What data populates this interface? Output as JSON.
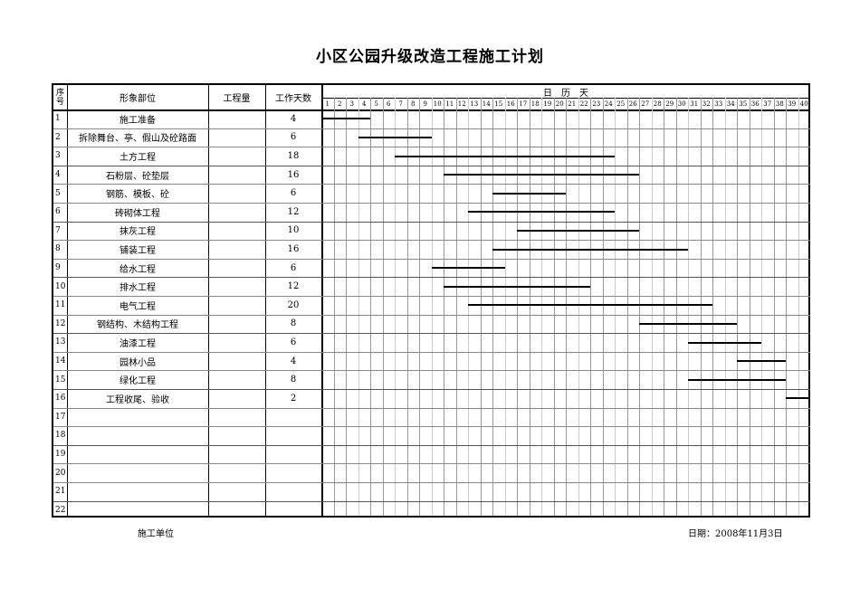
{
  "title": "小区公园升级改造工程施工计划",
  "headers": {
    "seq": "序号",
    "part": "形象部位",
    "quantity": "工程量",
    "days": "工作天数",
    "calendar": "日　历　天"
  },
  "calendar_days": [
    "1",
    "2",
    "3",
    "4",
    "5",
    "6",
    "7",
    "8",
    "9",
    "10",
    "11",
    "12",
    "13",
    "14",
    "15",
    "16",
    "17",
    "18",
    "19",
    "20",
    "21",
    "22",
    "23",
    "24",
    "25",
    "26",
    "27",
    "28",
    "29",
    "30",
    "31",
    "32",
    "33",
    "34",
    "35",
    "36",
    "37",
    "38",
    "39",
    "40"
  ],
  "rows": [
    {
      "no": "1",
      "part": "施工准备",
      "qty": "",
      "days": "4",
      "start": 1,
      "end": 4
    },
    {
      "no": "2",
      "part": "拆除舞台、亭、假山及砼路面",
      "qty": "",
      "days": "6",
      "start": 4,
      "end": 9
    },
    {
      "no": "3",
      "part": "土方工程",
      "qty": "",
      "days": "18",
      "start": 7,
      "end": 24
    },
    {
      "no": "4",
      "part": "石粉层、砼垫层",
      "qty": "",
      "days": "16",
      "start": 11,
      "end": 26
    },
    {
      "no": "5",
      "part": "钢筋、模板、砼",
      "qty": "",
      "days": "6",
      "start": 15,
      "end": 20
    },
    {
      "no": "6",
      "part": "砖砌体工程",
      "qty": "",
      "days": "12",
      "start": 13,
      "end": 24
    },
    {
      "no": "7",
      "part": "抹灰工程",
      "qty": "",
      "days": "10",
      "start": 17,
      "end": 26
    },
    {
      "no": "8",
      "part": "铺装工程",
      "qty": "",
      "days": "16",
      "start": 15,
      "end": 30
    },
    {
      "no": "9",
      "part": "给水工程",
      "qty": "",
      "days": "6",
      "start": 10,
      "end": 15
    },
    {
      "no": "10",
      "part": "排水工程",
      "qty": "",
      "days": "12",
      "start": 11,
      "end": 22
    },
    {
      "no": "11",
      "part": "电气工程",
      "qty": "",
      "days": "20",
      "start": 13,
      "end": 32
    },
    {
      "no": "12",
      "part": "钢结构、木结构工程",
      "qty": "",
      "days": "8",
      "start": 27,
      "end": 34
    },
    {
      "no": "13",
      "part": "油漆工程",
      "qty": "",
      "days": "6",
      "start": 31,
      "end": 36
    },
    {
      "no": "14",
      "part": "园林小品",
      "qty": "",
      "days": "4",
      "start": 35,
      "end": 38
    },
    {
      "no": "15",
      "part": "绿化工程",
      "qty": "",
      "days": "8",
      "start": 31,
      "end": 38
    },
    {
      "no": "16",
      "part": "工程收尾、验收",
      "qty": "",
      "days": "2",
      "start": 39,
      "end": 40
    },
    {
      "no": "17",
      "part": "",
      "qty": "",
      "days": ""
    },
    {
      "no": "18",
      "part": "",
      "qty": "",
      "days": ""
    },
    {
      "no": "19",
      "part": "",
      "qty": "",
      "days": ""
    },
    {
      "no": "20",
      "part": "",
      "qty": "",
      "days": ""
    },
    {
      "no": "21",
      "part": "",
      "qty": "",
      "days": ""
    },
    {
      "no": "22",
      "part": "",
      "qty": "",
      "days": ""
    }
  ],
  "footer": {
    "unit": "施工单位",
    "date": "日期：2008年11月3日"
  }
}
